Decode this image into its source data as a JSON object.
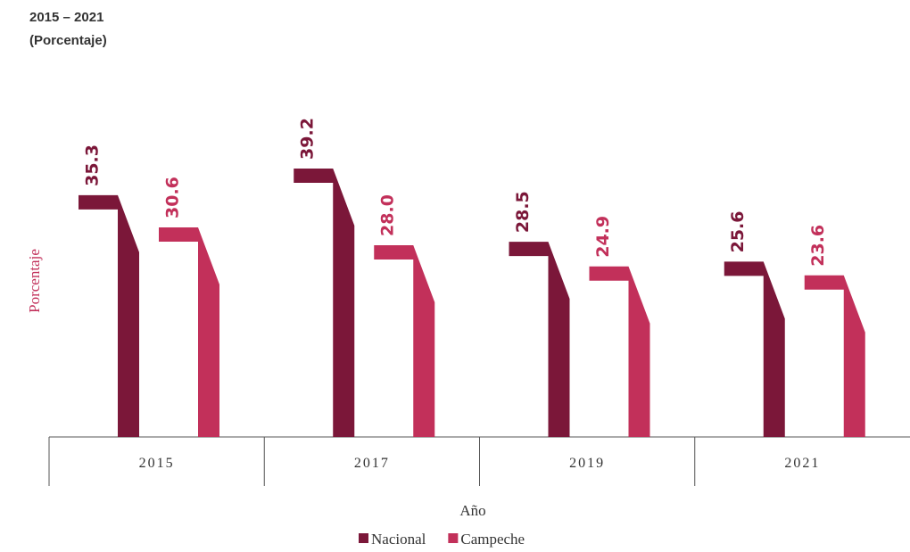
{
  "chart_data": {
    "type": "bar",
    "title": "2015 – 2021",
    "subtitle": "(Porcentaje)",
    "y_label": "Porcentaje",
    "x_label": "Año",
    "categories": [
      "2015",
      "2017",
      "2019",
      "2021"
    ],
    "series": [
      {
        "name": "Nacional",
        "color": "#7b1739",
        "values": [
          35.3,
          39.2,
          28.5,
          25.6
        ],
        "value_labels": [
          "35.3",
          "39.2",
          "28.5",
          "25.6"
        ]
      },
      {
        "name": "Campeche",
        "color": "#c2305a",
        "values": [
          30.6,
          28.0,
          24.9,
          23.6
        ],
        "value_labels": [
          "30.6",
          "28.0",
          "24.9",
          "23.6"
        ]
      }
    ]
  }
}
